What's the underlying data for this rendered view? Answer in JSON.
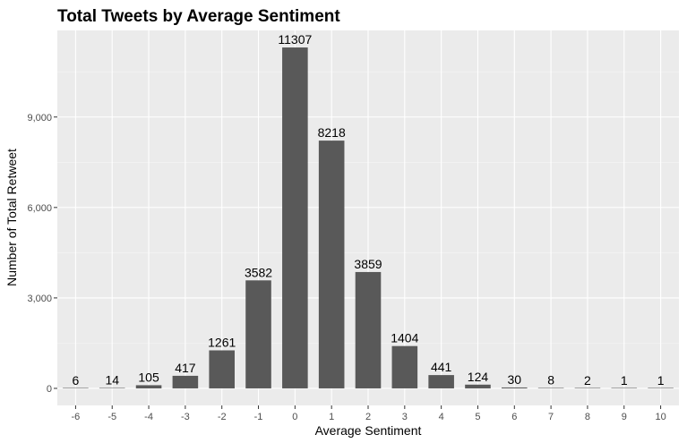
{
  "chart_data": {
    "type": "bar",
    "title": "Total Tweets by Average Sentiment",
    "xlabel": "Average Sentiment",
    "ylabel": "Number of Total Retweet",
    "categories": [
      "-6",
      "-5",
      "-4",
      "-3",
      "-2",
      "-1",
      "0",
      "1",
      "2",
      "3",
      "4",
      "5",
      "6",
      "7",
      "8",
      "9",
      "10"
    ],
    "values": [
      6,
      14,
      105,
      417,
      1261,
      3582,
      11307,
      8218,
      3859,
      1404,
      441,
      124,
      30,
      8,
      2,
      1,
      1
    ],
    "data_labels": [
      "6",
      "14",
      "105",
      "417",
      "1261",
      "3582",
      "11307",
      "8218",
      "3859",
      "1404",
      "441",
      "124",
      "30",
      "8",
      "2",
      "1",
      "1"
    ],
    "yticks": [
      0,
      3000,
      6000,
      9000
    ],
    "ytick_labels": [
      "0",
      "3,000",
      "6,000",
      "9,000"
    ],
    "ylim": [
      -565,
      11872
    ],
    "grid": true,
    "colors": {
      "panel_background": "#ebebeb",
      "grid_major": "#ffffff",
      "grid_minor": "#f5f5f5",
      "bar_fill": "#595959",
      "tick_label": "#4d4d4d",
      "tick_mark": "#333333"
    }
  }
}
